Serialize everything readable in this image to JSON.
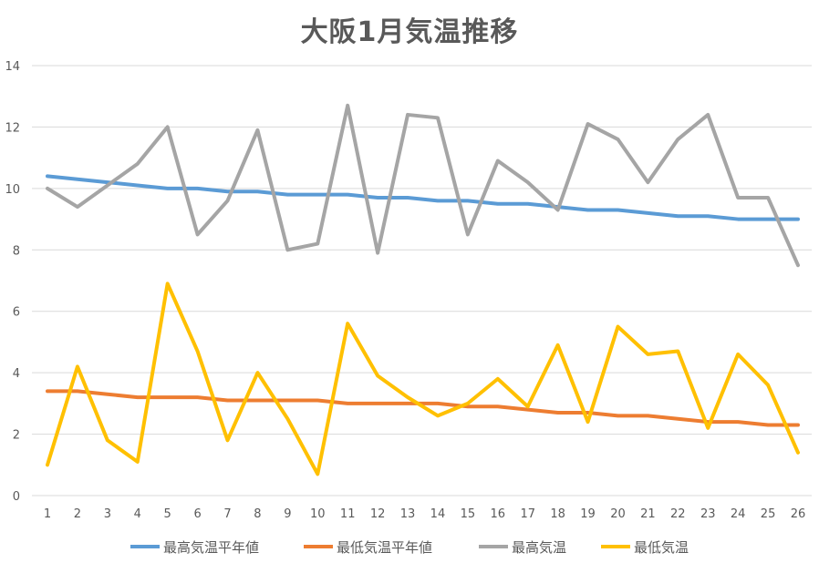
{
  "chart_data": {
    "type": "line",
    "title": "大阪1月気温推移",
    "x": [
      1,
      2,
      3,
      4,
      5,
      6,
      7,
      8,
      9,
      10,
      11,
      12,
      13,
      14,
      15,
      16,
      17,
      18,
      19,
      20,
      21,
      22,
      23,
      24,
      25,
      26
    ],
    "ylim": [
      0,
      14
    ],
    "yticks": [
      0,
      2,
      4,
      6,
      8,
      10,
      12,
      14
    ],
    "grid": true,
    "legend_position": "bottom",
    "series": [
      {
        "name": "最高気温平年値",
        "color": "#5B9BD5",
        "values": [
          10.4,
          10.3,
          10.2,
          10.1,
          10.0,
          10.0,
          9.9,
          9.9,
          9.8,
          9.8,
          9.8,
          9.7,
          9.7,
          9.6,
          9.6,
          9.5,
          9.5,
          9.4,
          9.3,
          9.3,
          9.2,
          9.1,
          9.1,
          9.0,
          9.0,
          9.0
        ]
      },
      {
        "name": "最低気温平年値",
        "color": "#ED7D31",
        "values": [
          3.4,
          3.4,
          3.3,
          3.2,
          3.2,
          3.2,
          3.1,
          3.1,
          3.1,
          3.1,
          3.0,
          3.0,
          3.0,
          3.0,
          2.9,
          2.9,
          2.8,
          2.7,
          2.7,
          2.6,
          2.6,
          2.5,
          2.4,
          2.4,
          2.3,
          2.3
        ]
      },
      {
        "name": "最高気温",
        "color": "#A5A5A5",
        "values": [
          10.0,
          9.4,
          10.1,
          10.8,
          12.0,
          8.5,
          9.6,
          11.9,
          8.0,
          8.2,
          12.7,
          7.9,
          12.4,
          12.3,
          8.5,
          10.9,
          10.2,
          9.3,
          12.1,
          11.6,
          10.2,
          11.6,
          12.4,
          9.7,
          9.7,
          7.5
        ]
      },
      {
        "name": "最低気温",
        "color": "#FFC000",
        "values": [
          1.0,
          4.2,
          1.8,
          1.1,
          6.9,
          4.7,
          1.8,
          4.0,
          2.5,
          0.7,
          5.6,
          3.9,
          3.2,
          2.6,
          3.0,
          3.8,
          2.9,
          4.9,
          2.4,
          5.5,
          4.6,
          4.7,
          2.2,
          4.6,
          3.6,
          1.4
        ]
      }
    ]
  }
}
